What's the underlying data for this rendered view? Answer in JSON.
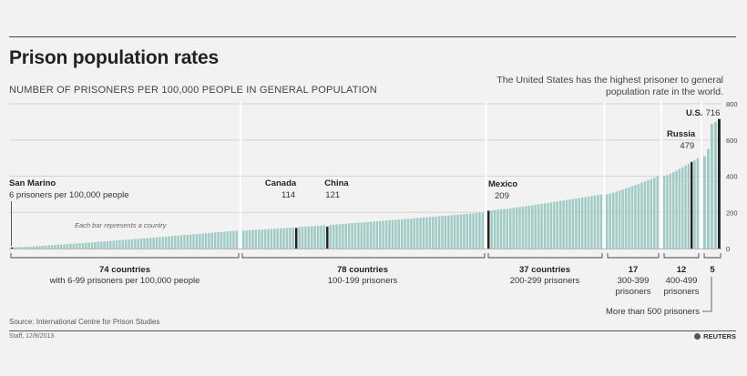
{
  "header": {
    "title": "Prison population rates",
    "subtitle": "NUMBER OF PRISONERS PER 100,000 PEOPLE IN GENERAL POPULATION",
    "note": "The United States has the highest prisoner to general population rate in the world."
  },
  "footer": {
    "source": "Source: International Centre for Prison Studies",
    "credit": "Staff, 12/8/2013",
    "brand": "REUTERS"
  },
  "colors": {
    "bar": "#9fcbc4",
    "bar_highlight": "#222222",
    "grid": "#d4d4d4"
  },
  "chart_data": {
    "type": "bar",
    "title": "Prison population rates",
    "ylabel": "Number of prisoners per 100,000 people in general population",
    "ylim": [
      0,
      800
    ],
    "yticks": [
      0,
      200,
      400,
      600,
      800
    ],
    "bar_note": "Each bar represents a country",
    "series": [
      {
        "name": "Prisoners per 100,000 people"
      }
    ],
    "groups": [
      {
        "count": 74,
        "min": 6,
        "max": 99,
        "count_label": "74 countries",
        "desc": "with 6-99 prisoners per 100,000 people"
      },
      {
        "count": 78,
        "min": 100,
        "max": 199,
        "count_label": "78 countries",
        "desc": "100-199 prisoners"
      },
      {
        "count": 37,
        "min": 209,
        "max": 299,
        "count_label": "37 countries",
        "desc": "200-299 prisoners"
      },
      {
        "count": 17,
        "min": 300,
        "max": 399,
        "count_label": "17",
        "desc": "300-399 prisoners"
      },
      {
        "count": 12,
        "min": 400,
        "max": 499,
        "count_label": "12",
        "desc": "400-499 prisoners"
      },
      {
        "count": 5,
        "min": 500,
        "max": 716,
        "values": [
          510,
          550,
          690,
          700,
          716
        ],
        "count_label": "5",
        "desc": "More than 500 prisoners"
      }
    ],
    "highlights": [
      {
        "country": "San Marino",
        "value": 6,
        "value_label": "6 prisoners per 100,000 people",
        "group": 0,
        "index": 0
      },
      {
        "country": "Canada",
        "value": 114,
        "value_label": "114",
        "group": 1,
        "index": 17
      },
      {
        "country": "China",
        "value": 121,
        "value_label": "121",
        "group": 1,
        "index": 27
      },
      {
        "country": "Mexico",
        "value": 209,
        "value_label": "209",
        "group": 2,
        "index": 0
      },
      {
        "country": "Russia",
        "value": 479,
        "value_label": "479",
        "group": 4,
        "index": 9
      },
      {
        "country": "U.S.",
        "value": 716,
        "value_label": "716",
        "group": 5,
        "index": 4
      }
    ]
  }
}
